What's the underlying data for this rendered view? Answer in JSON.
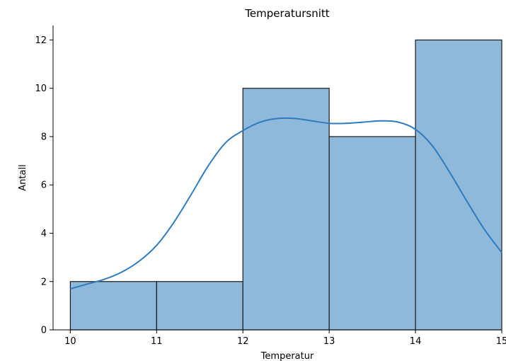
{
  "chart_data": {
    "type": "bar",
    "subtype": "histogram",
    "title": "Temperatursnitt",
    "xlabel": "Temperatur",
    "ylabel": "Antall",
    "xlim": [
      9.8,
      15
    ],
    "ylim": [
      0,
      12.6
    ],
    "x_ticks": [
      "10",
      "11",
      "12",
      "13",
      "14",
      "15"
    ],
    "y_ticks": [
      "0",
      "2",
      "4",
      "6",
      "8",
      "10",
      "12"
    ],
    "bins": [
      {
        "start": 10,
        "end": 11,
        "count": 2
      },
      {
        "start": 11,
        "end": 12,
        "count": 2
      },
      {
        "start": 12,
        "end": 13,
        "count": 10
      },
      {
        "start": 13,
        "end": 14,
        "count": 8
      },
      {
        "start": 14,
        "end": 15,
        "count": 12
      }
    ],
    "kde": {
      "x": [
        10.0,
        10.2,
        10.4,
        10.6,
        10.8,
        11.0,
        11.2,
        11.4,
        11.6,
        11.8,
        12.0,
        12.2,
        12.4,
        12.6,
        12.8,
        13.0,
        13.2,
        13.4,
        13.6,
        13.8,
        14.0,
        14.2,
        14.4,
        14.6,
        14.8,
        15.0
      ],
      "y": [
        1.7,
        1.9,
        2.1,
        2.4,
        2.85,
        3.5,
        4.45,
        5.6,
        6.8,
        7.75,
        8.25,
        8.6,
        8.75,
        8.75,
        8.65,
        8.55,
        8.55,
        8.6,
        8.65,
        8.6,
        8.3,
        7.6,
        6.5,
        5.3,
        4.15,
        3.2
      ]
    },
    "colors": {
      "bar_fill": "#8fb9da",
      "bar_edge": "#1a1a1a",
      "kde_line": "#2f7bbf"
    },
    "grid": false,
    "legend": "none"
  }
}
